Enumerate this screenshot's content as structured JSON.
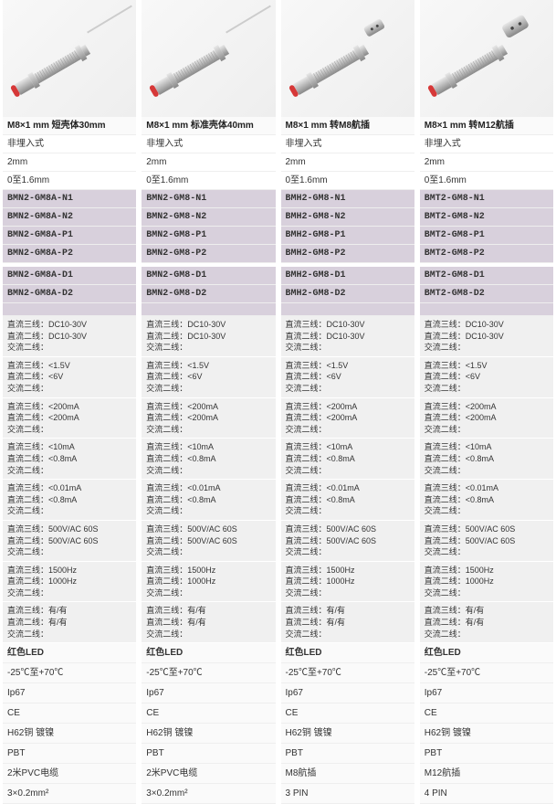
{
  "columns": [
    {
      "sensor_type": "cable_short",
      "title": "M8×1 mm 短壳体30mm",
      "mount": "非埋入式",
      "dist": "2mm",
      "range": "0至1.6mm",
      "models_a": [
        "BMN2-GM8A-N1",
        "BMN2-GM8A-N2",
        "BMN2-GM8A-P1",
        "BMN2-GM8A-P2"
      ],
      "models_b": [
        "BMN2-GM8A-D1",
        "BMN2-GM8A-D2"
      ],
      "conn": "2米PVC电缆",
      "pin": "3×0.2mm²"
    },
    {
      "sensor_type": "cable_long",
      "title": "M8×1 mm 标准壳体40mm",
      "mount": "非埋入式",
      "dist": "2mm",
      "range": "0至1.6mm",
      "models_a": [
        "BMN2-GM8-N1",
        "BMN2-GM8-N2",
        "BMN2-GM8-P1",
        "BMN2-GM8-P2"
      ],
      "models_b": [
        "BMN2-GM8-D1",
        "BMN2-GM8-D2"
      ],
      "conn": "2米PVC电缆",
      "pin": "3×0.2mm²"
    },
    {
      "sensor_type": "conn_m8",
      "title": "M8×1 mm 转M8航插",
      "mount": "非埋入式",
      "dist": "2mm",
      "range": "0至1.6mm",
      "models_a": [
        "BMH2-GM8-N1",
        "BMH2-GM8-N2",
        "BMH2-GM8-P1",
        "BMH2-GM8-P2"
      ],
      "models_b": [
        "BMH2-GM8-D1",
        "BMH2-GM8-D2"
      ],
      "conn": "M8航插",
      "pin": "3 PIN"
    },
    {
      "sensor_type": "conn_m12",
      "title": "M8×1 mm 转M12航插",
      "mount": "非埋入式",
      "dist": "2mm",
      "range": "0至1.6mm",
      "models_a": [
        "BMT2-GM8-N1",
        "BMT2-GM8-N2",
        "BMT2-GM8-P1",
        "BMT2-GM8-P2"
      ],
      "models_b": [
        "BMT2-GM8-D1",
        "BMT2-GM8-D2"
      ],
      "conn": "M12航插",
      "pin": "4 PIN"
    }
  ],
  "specs": [
    {
      "r1": "直流三线：DC10-30V",
      "r2a": "直流二线：DC10-30V",
      "r2b": "交流二线："
    },
    {
      "r1": "直流三线：<1.5V",
      "r2a": "直流二线：<6V",
      "r2b": "交流二线："
    },
    {
      "r1": "直流三线：<200mA",
      "r2a": "直流二线：<200mA",
      "r2b": "交流二线："
    },
    {
      "r1": "直流三线：<10mA",
      "r2a": "直流二线：<0.8mA",
      "r2b": "交流二线："
    },
    {
      "r1": "直流三线：<0.01mA",
      "r2a": "直流二线：<0.8mA",
      "r2b": "交流二线："
    },
    {
      "r1": "直流三线：500V/AC 60S",
      "r2a": "直流二线：500V/AC 60S",
      "r2b": "交流二线："
    },
    {
      "r1": "直流三线：1500Hz",
      "r2a": "直流二线：1000Hz",
      "r2b": "交流二线："
    },
    {
      "r1": "直流三线：有/有",
      "r2a": "直流二线：有/有",
      "r2b": "交流二线："
    }
  ],
  "props": {
    "led": "红色LED",
    "temp": "-25℃至+70℃",
    "ip": "Ip67",
    "ce": "CE",
    "housing": "H62铜 镀镍",
    "cap": "PBT"
  },
  "colors": {
    "tip": "#d63838",
    "body": "#b8b8b8",
    "body_light": "#e8e8e8",
    "body_dark": "#888888",
    "cable": "#cccccc"
  }
}
